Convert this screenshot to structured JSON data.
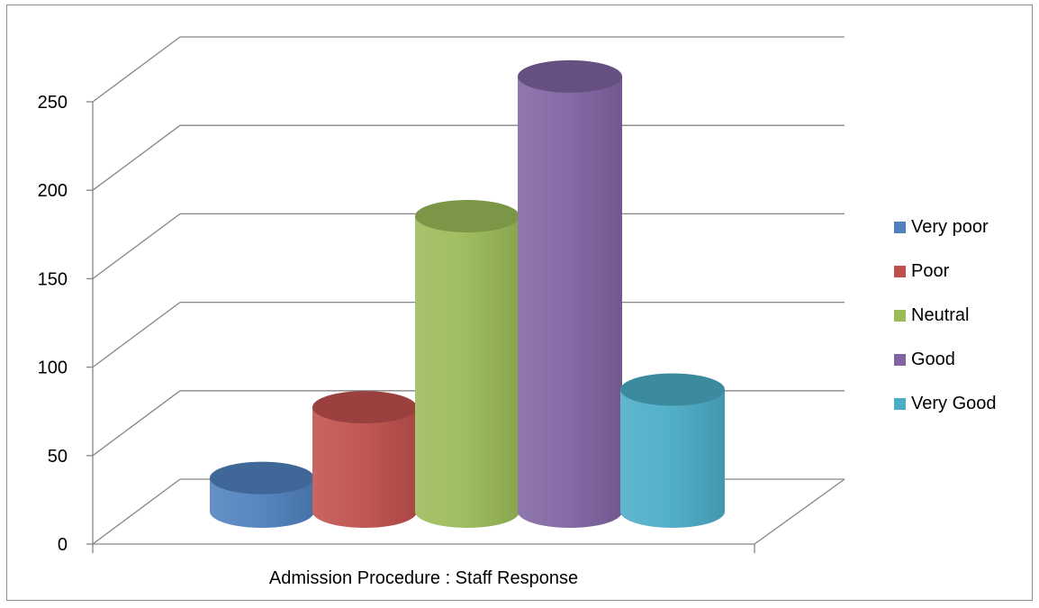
{
  "chart_data": {
    "type": "bar",
    "style": "3d-cylinder",
    "categories": [
      "Admission Procedure : Staff Response"
    ],
    "series": [
      {
        "name": "Very poor",
        "values": [
          19
        ],
        "color": "#4f81bd"
      },
      {
        "name": "Poor",
        "values": [
          59
        ],
        "color": "#c0504d"
      },
      {
        "name": "Neutral",
        "values": [
          167
        ],
        "color": "#9bbb59"
      },
      {
        "name": "Good",
        "values": [
          246
        ],
        "color": "#8064a2"
      },
      {
        "name": "Very Good",
        "values": [
          69
        ],
        "color": "#4bacc6"
      }
    ],
    "title": "",
    "xlabel": "",
    "ylabel": "",
    "ylim": [
      0,
      250
    ],
    "yticks": [
      0,
      50,
      100,
      150,
      200,
      250
    ],
    "grid": true,
    "legend_position": "right"
  }
}
